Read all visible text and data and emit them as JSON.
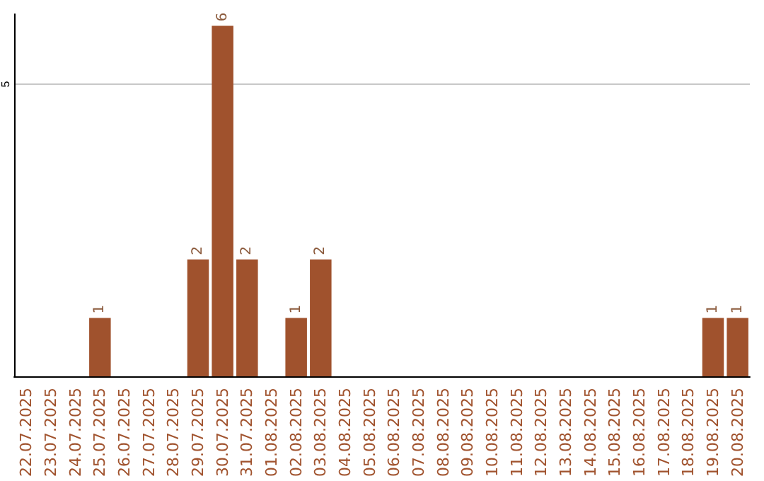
{
  "chart_data": {
    "type": "bar",
    "categories": [
      "22.07.2025",
      "23.07.2025",
      "24.07.2025",
      "25.07.2025",
      "26.07.2025",
      "27.07.2025",
      "28.07.2025",
      "29.07.2025",
      "30.07.2025",
      "31.07.2025",
      "01.08.2025",
      "02.08.2025",
      "03.08.2025",
      "04.08.2025",
      "05.08.2025",
      "06.08.2025",
      "07.08.2025",
      "08.08.2025",
      "09.08.2025",
      "10.08.2025",
      "11.08.2025",
      "12.08.2025",
      "13.08.2025",
      "14.08.2025",
      "15.08.2025",
      "16.08.2025",
      "17.08.2025",
      "18.08.2025",
      "19.08.2025",
      "20.08.2025"
    ],
    "values": [
      0,
      0,
      0,
      1,
      0,
      0,
      0,
      2,
      6,
      2,
      0,
      1,
      2,
      0,
      0,
      0,
      0,
      0,
      0,
      0,
      0,
      0,
      0,
      0,
      0,
      0,
      0,
      0,
      1,
      1
    ],
    "value_labels": [
      null,
      null,
      null,
      "1",
      null,
      null,
      null,
      "2",
      "6",
      "2",
      null,
      "1",
      "2",
      null,
      null,
      null,
      null,
      null,
      null,
      null,
      null,
      null,
      null,
      null,
      null,
      null,
      null,
      null,
      "1",
      "1"
    ],
    "color": "#a0522d",
    "ylim": [
      0,
      6.2
    ],
    "yticks": [
      5
    ],
    "grid": "y"
  }
}
